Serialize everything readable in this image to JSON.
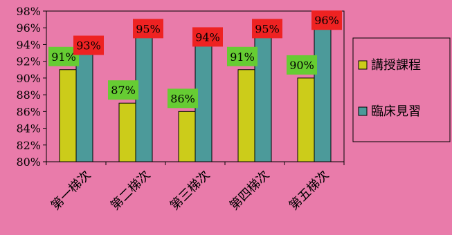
{
  "chart_data": {
    "type": "bar",
    "categories": [
      "第一梯次",
      "第二梯次",
      "第三梯次",
      "第四梯次",
      "第五梯次"
    ],
    "series": [
      {
        "name": "講授課程",
        "values": [
          91,
          87,
          86,
          91,
          90
        ],
        "color": "#CCCC1A",
        "label_bg": "#66CC33"
      },
      {
        "name": "臨床見習",
        "values": [
          93,
          95,
          94,
          95,
          96
        ],
        "color": "#4C9A9A",
        "label_bg": "#EE2222"
      }
    ],
    "data_labels": [
      [
        "91%",
        "87%",
        "86%",
        "91%",
        "90%"
      ],
      [
        "93%",
        "95%",
        "94%",
        "95%",
        "96%"
      ]
    ],
    "ylim": [
      80,
      98
    ],
    "ytick_values": [
      80,
      82,
      84,
      86,
      88,
      90,
      92,
      94,
      96,
      98
    ],
    "ytick_labels": [
      "80%",
      "82%",
      "84%",
      "86%",
      "88%",
      "90%",
      "92%",
      "94%",
      "96%",
      "98%"
    ],
    "legend_position": "right",
    "grid": false,
    "title": "",
    "xlabel": "",
    "ylabel": ""
  }
}
